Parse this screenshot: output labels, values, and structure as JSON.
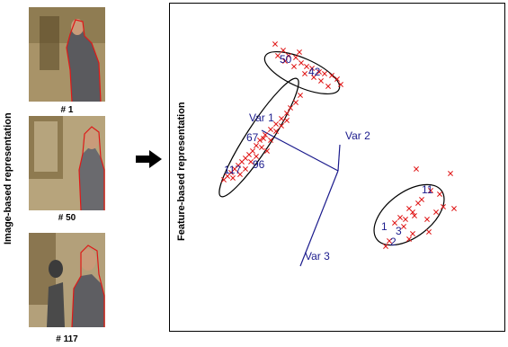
{
  "left_panel": {
    "axis_label": "Image-based representation",
    "frames": [
      {
        "caption": "# 1"
      },
      {
        "caption": "# 50"
      },
      {
        "caption": "# 117"
      }
    ]
  },
  "right_panel": {
    "axis_label": "Feature-based representation",
    "variables": [
      "Var 1",
      "Var 2",
      "Var 3"
    ],
    "point_labels": [
      "50",
      "42",
      "67",
      "117",
      "96",
      "11",
      "1",
      "3",
      "2"
    ]
  },
  "colors": {
    "marker": "#e01818",
    "outline": "#e01818",
    "axis_lines": "#1a1a8c",
    "ellipse": "#000000",
    "label_text": "#1a1a8c"
  },
  "icons": {
    "flow": "right-arrow-icon"
  }
}
